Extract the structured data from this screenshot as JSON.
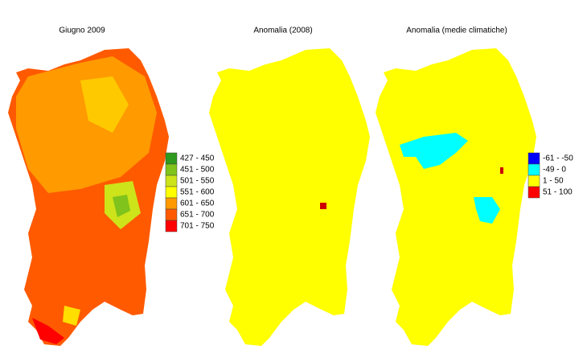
{
  "maps": [
    {
      "title": "Giugno 2009",
      "legend": [
        {
          "label": "427 - 450",
          "color": "#2e9a1e"
        },
        {
          "label": "451 - 500",
          "color": "#7fc31c"
        },
        {
          "label": "501 - 550",
          "color": "#cde31a"
        },
        {
          "label": "551 - 600",
          "color": "#ffff00"
        },
        {
          "label": "601 - 650",
          "color": "#ff9a00"
        },
        {
          "label": "651 - 700",
          "color": "#ff5a00"
        },
        {
          "label": "701 - 750",
          "color": "#ff0000"
        }
      ]
    },
    {
      "title": "Anomalia (2008)"
    },
    {
      "title": "Anomalia (medie climatiche)",
      "legend": [
        {
          "label": "-61 - -50",
          "color": "#0000ff"
        },
        {
          "label": "-49 - 0",
          "color": "#00ffff"
        },
        {
          "label": "1 - 50",
          "color": "#ffff00"
        },
        {
          "label": "51 - 100",
          "color": "#ff0000"
        }
      ]
    }
  ]
}
